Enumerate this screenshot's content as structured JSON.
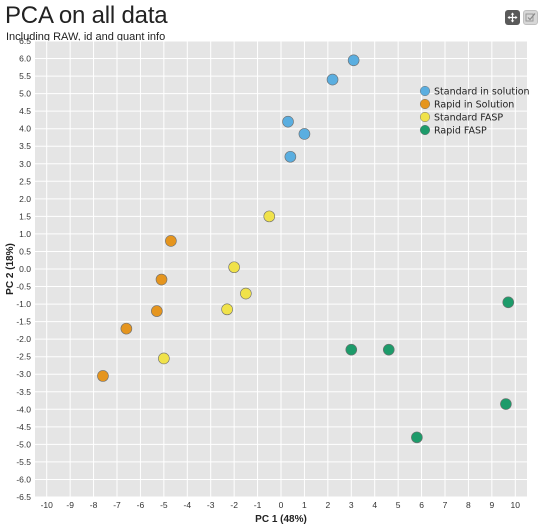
{
  "header": {
    "title": "PCA on all data",
    "subtitle": "Including RAW, id and quant info"
  },
  "toolbar": {
    "move_icon": "move-icon",
    "select_icon": "select-icon"
  },
  "chart_data": {
    "type": "scatter",
    "title": "PCA on all data",
    "subtitle": "Including RAW, id and quant info",
    "xlabel": "PC 1 (48%)",
    "ylabel": "PC 2 (18%)",
    "xlim": [
      -10.5,
      10.5
    ],
    "ylim": [
      -6.5,
      6.5
    ],
    "x_ticks": [
      -10,
      -9,
      -8,
      -7,
      -6,
      -5,
      -4,
      -3,
      -2,
      -1,
      0,
      1,
      2,
      3,
      4,
      5,
      6,
      7,
      8,
      9,
      10
    ],
    "y_ticks": [
      6.5,
      6.0,
      5.5,
      5.0,
      4.5,
      4.0,
      3.5,
      3.0,
      2.5,
      2.0,
      1.5,
      1.0,
      0.5,
      0.0,
      -0.5,
      -1.0,
      -1.5,
      -2.0,
      -2.5,
      -3.0,
      -3.5,
      -4.0,
      -4.5,
      -5.0,
      -5.5,
      -6.0,
      -6.5
    ],
    "grid": true,
    "legend_position": "top-right",
    "series": [
      {
        "name": "Standard in solution",
        "color": "#5aaee0",
        "points": [
          [
            3.1,
            5.95
          ],
          [
            2.2,
            5.4
          ],
          [
            0.3,
            4.2
          ],
          [
            1.0,
            3.85
          ],
          [
            0.4,
            3.2
          ]
        ]
      },
      {
        "name": "Rapid in Solution",
        "color": "#e5951e",
        "points": [
          [
            -4.7,
            0.8
          ],
          [
            -5.1,
            -0.3
          ],
          [
            -5.3,
            -1.2
          ],
          [
            -6.6,
            -1.7
          ],
          [
            -7.6,
            -3.05
          ]
        ]
      },
      {
        "name": "Standard FASP",
        "color": "#f0e24a",
        "points": [
          [
            -0.5,
            1.5
          ],
          [
            -2.0,
            0.05
          ],
          [
            -1.5,
            -0.7
          ],
          [
            -2.3,
            -1.15
          ],
          [
            -5.0,
            -2.55
          ]
        ]
      },
      {
        "name": "Rapid FASP",
        "color": "#1d9b6a",
        "points": [
          [
            9.7,
            -0.95
          ],
          [
            3.0,
            -2.3
          ],
          [
            4.6,
            -2.3
          ],
          [
            9.6,
            -3.85
          ],
          [
            5.8,
            -4.8
          ]
        ]
      }
    ]
  }
}
